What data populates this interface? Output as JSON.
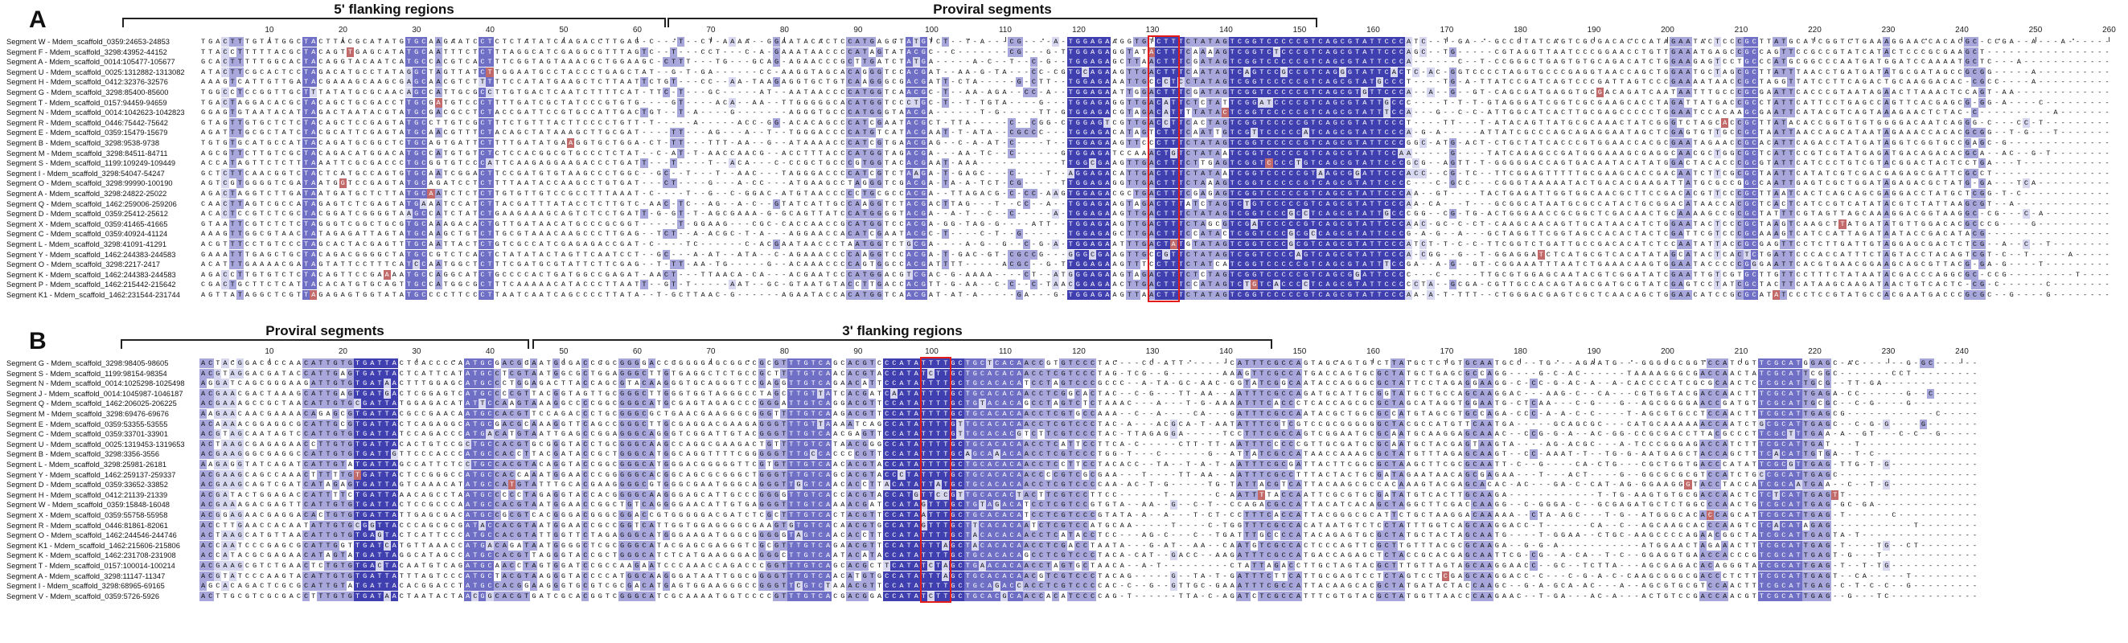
{
  "colors": {
    "shade_light": "#d7d7f0",
    "shade_mid": "#a7a7dc",
    "shade_dark": "#6f6fc6",
    "shade_darkest": "#3f3fb0",
    "box": "#e21b1b"
  },
  "panels": [
    {
      "letter": "A",
      "regions": [
        {
          "label": "5' flanking regions"
        },
        {
          "label": "Proviral segments"
        }
      ],
      "ticks": [
        "10",
        "20",
        "30",
        "40",
        "50",
        "60",
        "70",
        "80",
        "90",
        "100",
        "110",
        "120",
        "130",
        "140",
        "150",
        "160",
        "170",
        "180",
        "190",
        "200",
        "210",
        "220",
        "230",
        "240",
        "250",
        "260"
      ],
      "sequences": [
        "Segment W - Mdem_scaffold_0359:24653-24853",
        "Segment F - Mdem_scaffold_3298:43952-44152",
        "Segment A - Mdem_scaffold_0014:105477-105677",
        "Segment U - Mdem_scaffold_0025:1312882-1313082",
        "Segment H - Mdem_scaffold_0412:32376-32576",
        "Segment G - Mdem_scaffold_3298:85400-85600",
        "Segment T - Mdem_scaffold_0157:94459-94659",
        "Segment N - Mdem_scaffold_0014:1042623-1042823",
        "Segment R - Mdem_scaffold_0446:75442-75642",
        "Segment E - Mdem_scaffold_0359:15479-15679",
        "Segment B - Mdem_scaffold_3298:9538-9738",
        "Segment M - Mdem_scaffold_3298:84511-84711",
        "Segment S - Mdem_scaffold_1199:109249-109449",
        "Segment I - Mdem_scaffold_3298:54047-54247",
        "Segment O - Mdem_scaffold_3298:99990-100190",
        "Segment A - Mdem_scaffold_3298:24822-25022",
        "Segment Q - Mdem_scaffold_1462:259006-259206",
        "Segment D - Mdem_scaffold_0359:25412-25612",
        "Segment X - Mdem_scaffold_0359:41465-41665",
        "Segment C - Mdem_scaffold_0359:40924-41124",
        "Segment L - Mdem_scaffold_3298:41091-41291",
        "Segment Y - Mdem_scaffold_1462:244383-244583",
        "Segment O - Mdem_scaffold_3298:2217-2417",
        "Segment K - Mdem_scaffold_1462:244383-244583",
        "Segment P - Mdem_scaffold_1462:215442-215642",
        "Segment K1 - Mdem_scaffold_1462:231544-231744"
      ]
    },
    {
      "letter": "B",
      "regions": [
        {
          "label": "Proviral segments"
        },
        {
          "label": "3' flanking regions"
        }
      ],
      "ticks": [
        "10",
        "20",
        "30",
        "40",
        "50",
        "60",
        "70",
        "80",
        "90",
        "100",
        "110",
        "120",
        "130",
        "140",
        "150",
        "160",
        "170",
        "180",
        "190",
        "200",
        "210",
        "220",
        "230",
        "240"
      ],
      "sequences": [
        "Segment G - Mdem_scaffold_3298:98405-98605",
        "Segment S - Mdem_scaffold_1199:98154-98354",
        "Segment N - Mdem_scaffold_0014:1025298-1025498",
        "Segment J - Mdem_scaffold_0014:1045987-1046187",
        "Segment Q - Mdem_scaffold_1462:206025-206225",
        "Segment M - Mdem_scaffold_3298:69476-69676",
        "Segment E - Mdem_scaffold_0359:53355-53555",
        "Segment C - Mdem_scaffold_0359:33701-33901",
        "Segment U - Mdem_scaffold_0025:1319453-1319653",
        "Segment B - Mdem_scaffold_3298:3356-3556",
        "Segment L - Mdem_scaffold_3298:25981-26181",
        "Segment Y - Mdem_scaffold_1462:259137-259337",
        "Segment D - Mdem_scaffold_0359:33652-33852",
        "Segment H - Mdem_scaffold_0412:21139-21339",
        "Segment W - Mdem_scaffold_0359:15848-16048",
        "Segment X - Mdem_scaffold_0359:55758-55958",
        "Segment R - Mdem_scaffold_0446:81861-82061",
        "Segment O - Mdem_scaffold_1462:244546-244746",
        "Segment K1 - Mdem_scaffold_1462:215606-215806",
        "Segment K - Mdem_scaffold_1462:231708-231908",
        "Segment T - Mdem_scaffold_0157:100014-100214",
        "Segment A - Mdem_scaffold_3298:11147-11347",
        "Segment I - Mdem_scaffold_3298:68965-69165",
        "Segment V - Mdem_scaffold_0359:5726-5926"
      ]
    }
  ]
}
